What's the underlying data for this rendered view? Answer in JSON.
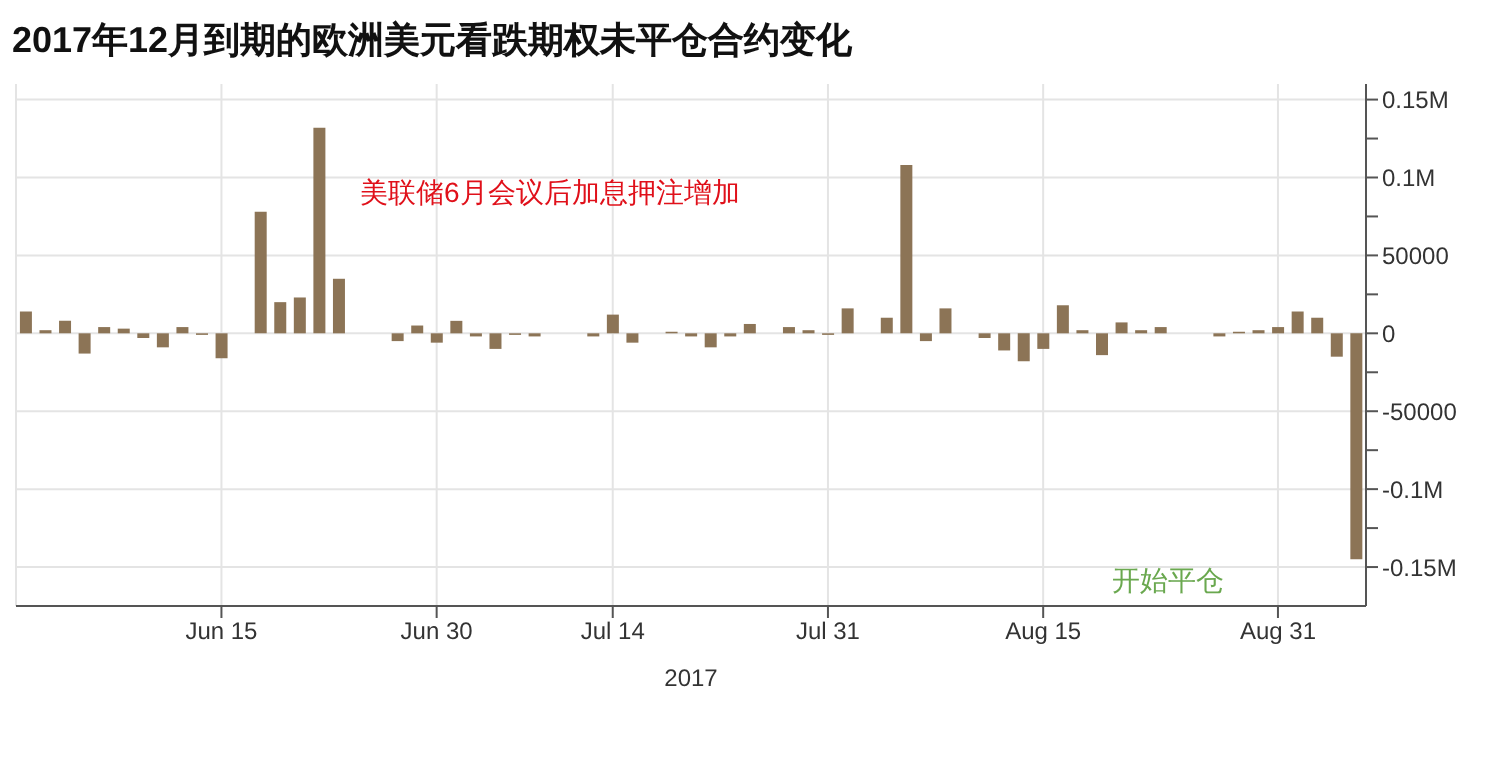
{
  "chart_data": {
    "type": "bar",
    "title": "2017年12月到期的欧洲美元看跌期权未平仓合约变化",
    "xlabel": "2017",
    "categories": [
      null,
      null,
      null,
      null,
      null,
      null,
      null,
      null,
      null,
      null,
      "Jun 15",
      null,
      null,
      null,
      null,
      null,
      null,
      null,
      null,
      null,
      null,
      "Jun 30",
      null,
      null,
      null,
      null,
      null,
      null,
      null,
      null,
      "Jul 14",
      null,
      null,
      null,
      null,
      null,
      null,
      null,
      null,
      null,
      null,
      "Jul 31",
      null,
      null,
      null,
      null,
      null,
      null,
      null,
      null,
      null,
      null,
      "Aug 15",
      null,
      null,
      null,
      null,
      null,
      null,
      null,
      null,
      null,
      null,
      null,
      "Aug 31",
      null,
      null,
      null,
      null
    ],
    "values": [
      14000,
      2000,
      8000,
      -13000,
      4000,
      3000,
      -3000,
      -9000,
      4000,
      -1000,
      -16000,
      0,
      78000,
      20000,
      23000,
      132000,
      35000,
      0,
      0,
      -5000,
      5000,
      -6000,
      8000,
      -2000,
      -10000,
      -1000,
      -2000,
      0,
      0,
      -2000,
      12000,
      -6000,
      0,
      1000,
      -2000,
      -9000,
      -2000,
      6000,
      0,
      4000,
      2000,
      -1000,
      16000,
      0,
      10000,
      108000,
      -5000,
      16000,
      0,
      -3000,
      -11000,
      -18000,
      -10000,
      18000,
      2000,
      -14000,
      7000,
      2000,
      4000,
      0,
      0,
      -2000,
      1000,
      2000,
      4000,
      14000,
      10000,
      -15000,
      -145000
    ],
    "color": "#8c7456",
    "ylim": [
      -175000,
      160000
    ],
    "yticks": [
      {
        "value": 150000,
        "label": "0.15M"
      },
      {
        "value": 125000,
        "label": null
      },
      {
        "value": 100000,
        "label": "0.1M"
      },
      {
        "value": 75000,
        "label": null
      },
      50000,
      {
        "value": 25000,
        "label": null
      },
      0,
      {
        "value": -25000,
        "label": null
      },
      -50000,
      {
        "value": -75000,
        "label": null
      },
      {
        "value": -100000,
        "label": "-0.1M"
      },
      {
        "value": -125000,
        "label": null
      },
      {
        "value": -150000,
        "label": "-0.15M"
      }
    ],
    "grid": true,
    "annotations": [
      "美联储6月会议后加息押注增加",
      "开始平仓"
    ]
  }
}
